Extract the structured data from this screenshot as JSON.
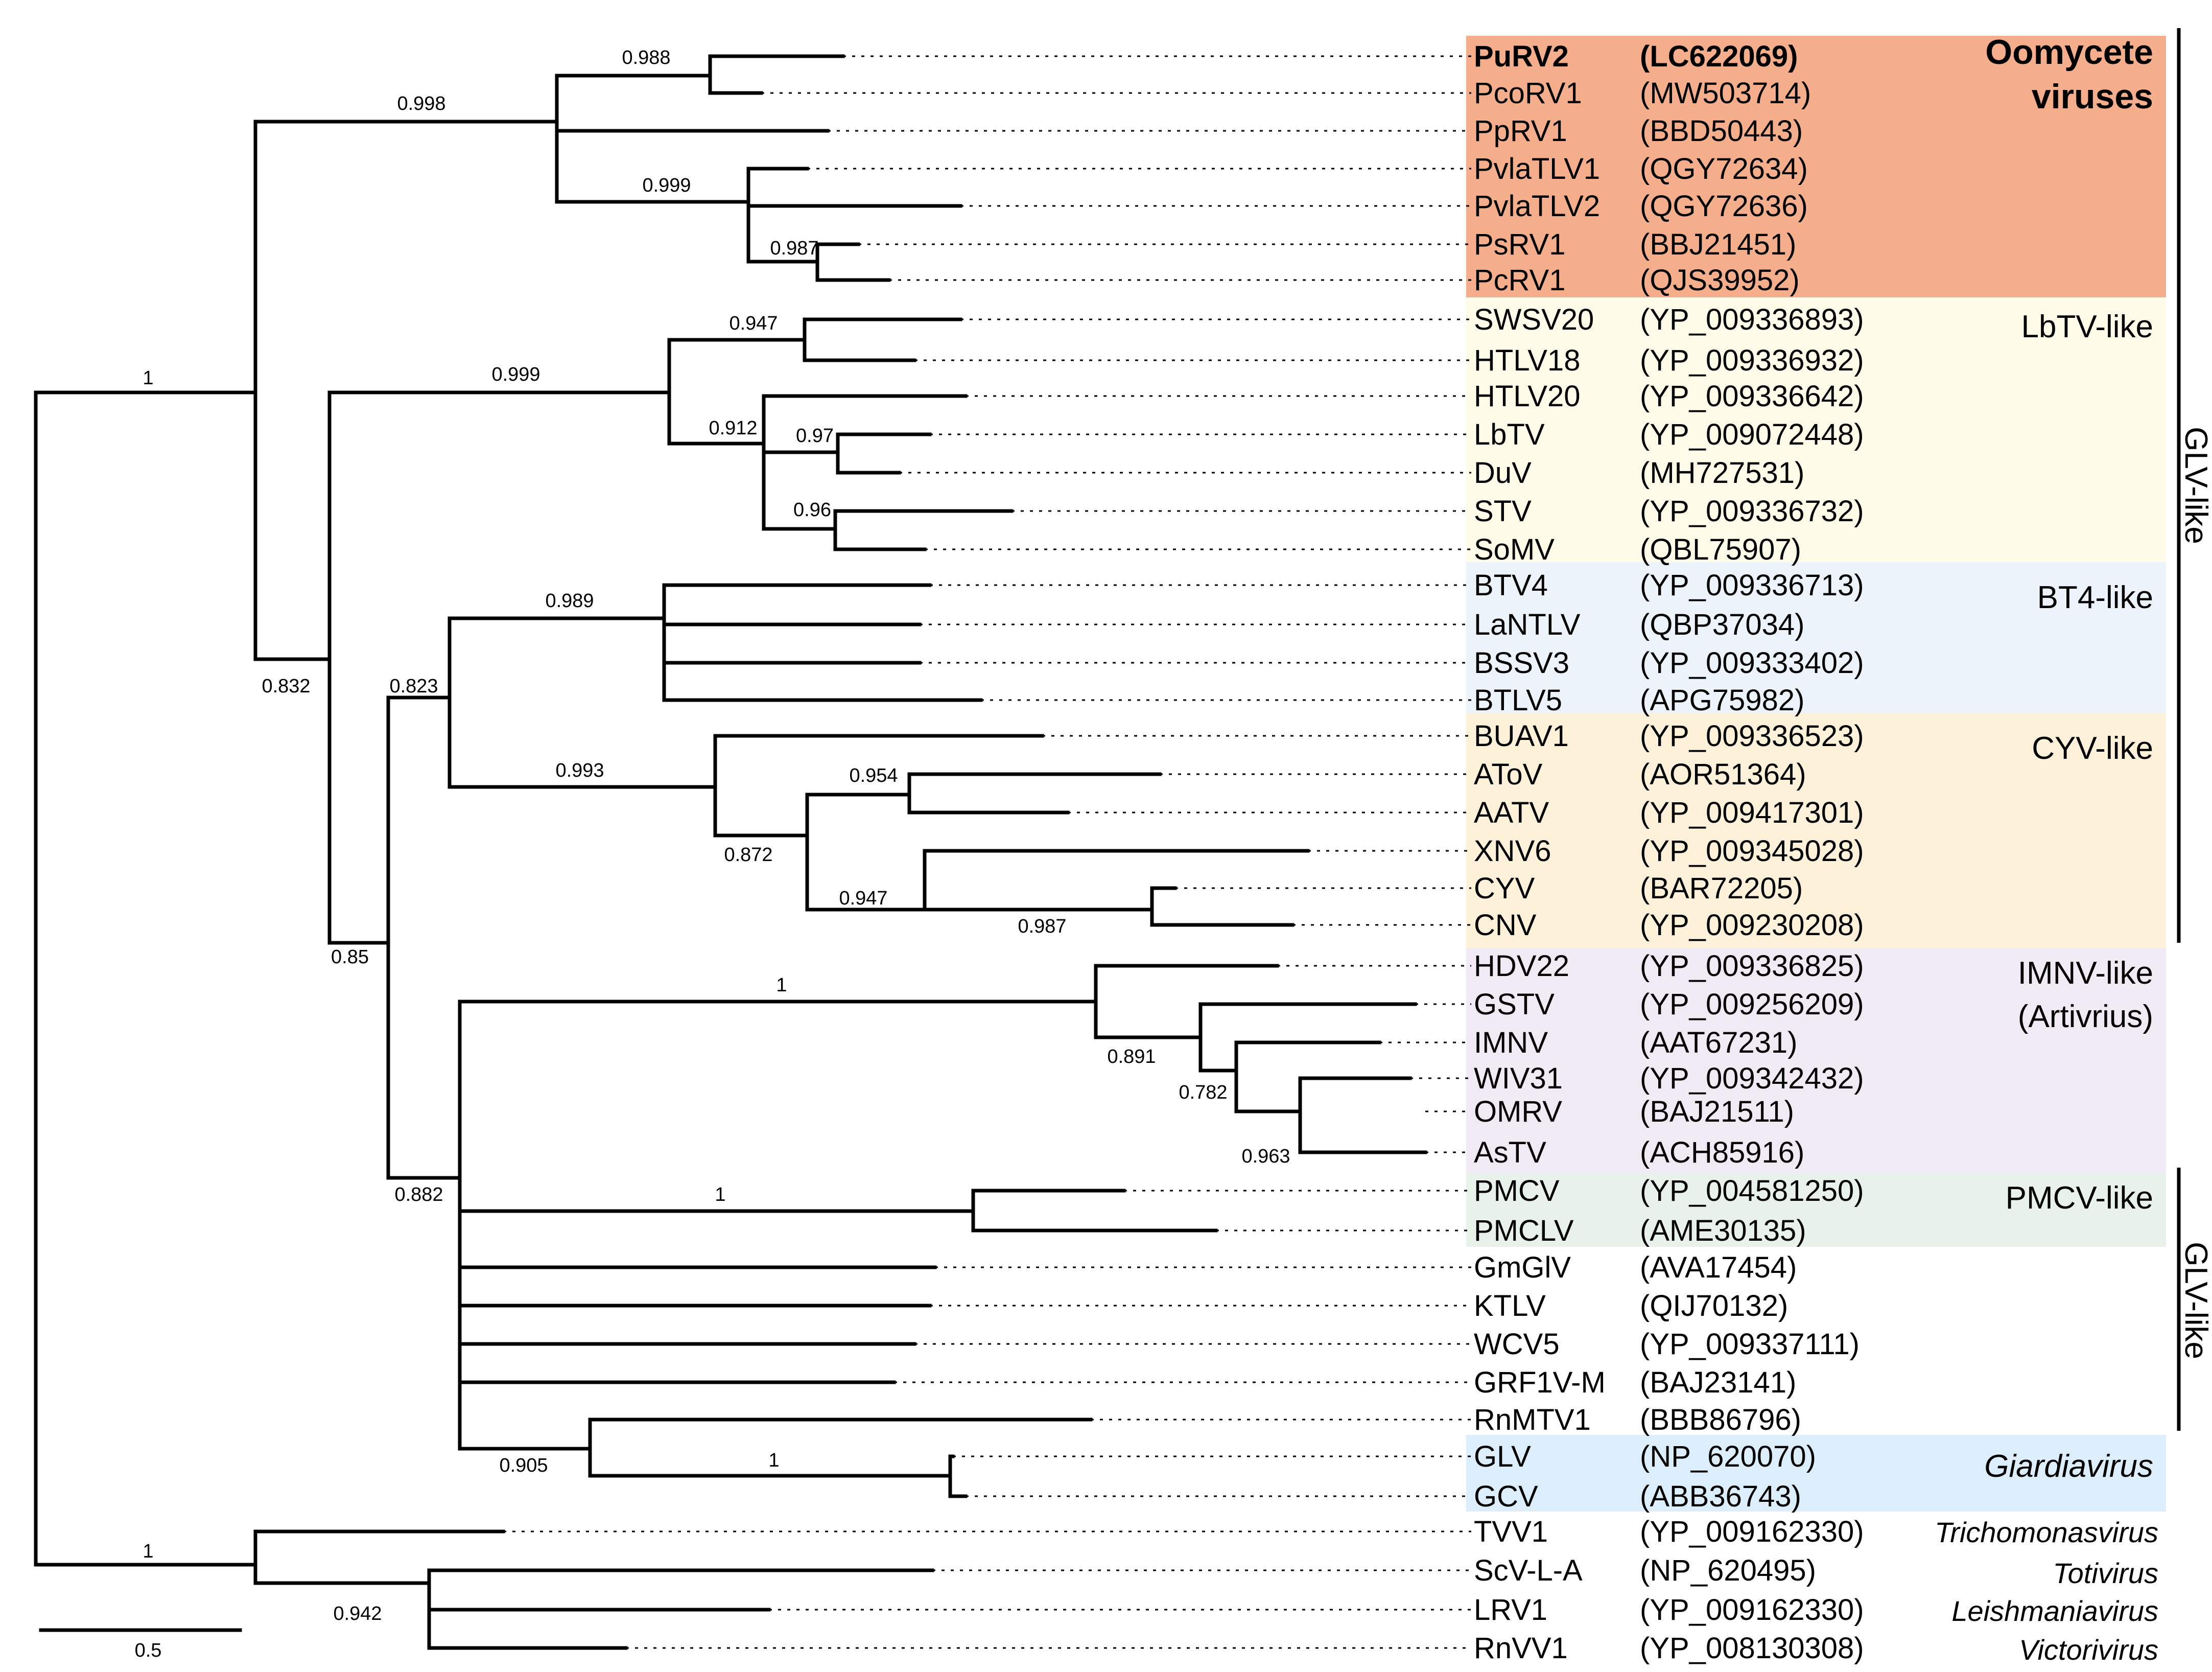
{
  "figure": "Phylogenetic tree of totivirus-like RdRp sequences",
  "scale_bar": {
    "label": "0.5",
    "value": 0.5
  },
  "leaves": [
    {
      "name": "PuRV2",
      "accession": "(LC622069)",
      "bold": true
    },
    {
      "name": "PcoRV1",
      "accession": "(MW503714)"
    },
    {
      "name": "PpRV1",
      "accession": "(BBD50443)"
    },
    {
      "name": "PvlaTLV1",
      "accession": "(QGY72634)"
    },
    {
      "name": "PvlaTLV2",
      "accession": "(QGY72636)"
    },
    {
      "name": "PsRV1",
      "accession": "(BBJ21451)"
    },
    {
      "name": "PcRV1",
      "accession": "(QJS39952)"
    },
    {
      "name": "SWSV20",
      "accession": "(YP_009336893)"
    },
    {
      "name": "HTLV18",
      "accession": "(YP_009336932)"
    },
    {
      "name": "HTLV20",
      "accession": "(YP_009336642)"
    },
    {
      "name": "LbTV",
      "accession": "(YP_009072448)"
    },
    {
      "name": "DuV",
      "accession": "(MH727531)"
    },
    {
      "name": "STV",
      "accession": "(YP_009336732)"
    },
    {
      "name": "SoMV",
      "accession": "(QBL75907)"
    },
    {
      "name": "BTV4",
      "accession": "(YP_009336713)"
    },
    {
      "name": "LaNTLV",
      "accession": "(QBP37034)"
    },
    {
      "name": "BSSV3",
      "accession": "(YP_009333402)"
    },
    {
      "name": "BTLV5",
      "accession": "(APG75982)"
    },
    {
      "name": "BUAV1",
      "accession": "(YP_009336523)"
    },
    {
      "name": "AToV",
      "accession": "(AOR51364)"
    },
    {
      "name": "AATV",
      "accession": "(YP_009417301)"
    },
    {
      "name": "XNV6",
      "accession": "(YP_009345028)"
    },
    {
      "name": "CYV",
      "accession": "(BAR72205)"
    },
    {
      "name": "CNV",
      "accession": "(YP_009230208)"
    },
    {
      "name": "HDV22",
      "accession": "(YP_009336825)"
    },
    {
      "name": "GSTV",
      "accession": "(YP_009256209)"
    },
    {
      "name": "IMNV",
      "accession": "(AAT67231)"
    },
    {
      "name": "WIV31",
      "accession": "(YP_009342432)"
    },
    {
      "name": "OMRV",
      "accession": "(BAJ21511)"
    },
    {
      "name": "AsTV",
      "accession": "(ACH85916)"
    },
    {
      "name": "PMCV",
      "accession": "(YP_004581250)"
    },
    {
      "name": "PMCLV",
      "accession": "(AME30135)"
    },
    {
      "name": "GmGlV",
      "accession": "(AVA17454)"
    },
    {
      "name": "KTLV",
      "accession": "(QIJ70132)"
    },
    {
      "name": "WCV5",
      "accession": "(YP_009337111)"
    },
    {
      "name": "GRF1V-M",
      "accession": "(BAJ23141)"
    },
    {
      "name": "RnMTV1",
      "accession": "(BBB86796)"
    },
    {
      "name": "GLV",
      "accession": "(NP_620070)"
    },
    {
      "name": "GCV",
      "accession": "(ABB36743)"
    },
    {
      "name": "TVV1",
      "accession": "(YP_009162330)"
    },
    {
      "name": "ScV-L-A",
      "accession": "(NP_620495)"
    },
    {
      "name": "LRV1",
      "accession": "(YP_009162330)"
    },
    {
      "name": "RnVV1",
      "accession": "(YP_008130308)"
    }
  ],
  "support_values": [
    "0.988",
    "0.998",
    "0.999",
    "0.987",
    "1",
    "0.947",
    "0.999",
    "0.912",
    "0.97",
    "0.96",
    "0.832",
    "0.989",
    "0.823",
    "0.993",
    "0.954",
    "0.872",
    "0.947",
    "0.987",
    "0.85",
    "1",
    "0.891",
    "0.782",
    "0.963",
    "0.882",
    "1",
    "0.905",
    "1",
    "1",
    "0.942"
  ],
  "groups": [
    {
      "label_lines": [
        "Oomycete",
        "viruses"
      ],
      "color": "#f4ae8c",
      "bold": true
    },
    {
      "label_lines": [
        "LbTV-like"
      ],
      "color": "#fefbe8"
    },
    {
      "label_lines": [
        "BT4-like"
      ],
      "color": "#ecf3fb"
    },
    {
      "label_lines": [
        "CYV-like"
      ],
      "color": "#fdf1d9"
    },
    {
      "label_lines": [
        "IMNV-like",
        "(Artivrius)"
      ],
      "color": "#efeaf4"
    },
    {
      "label_lines": [
        "PMCV-like"
      ],
      "color": "#e9f2ea"
    },
    {
      "label_lines": [
        "Giardiavirus"
      ],
      "color": "#dceefb",
      "italic": true
    }
  ],
  "side_labels": [
    "GLV-like",
    "GLV-like"
  ],
  "genus_labels": [
    "Trichomonasvirus",
    "Totivirus",
    "Leishmaniavirus",
    "Victorivirus"
  ]
}
